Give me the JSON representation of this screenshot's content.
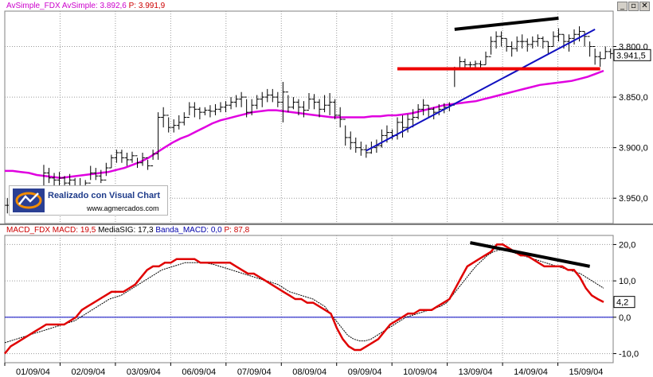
{
  "window_controls": {
    "minimize": "_",
    "restore": "▫",
    "close": "✕"
  },
  "price_panel": {
    "header": {
      "name": "AvSimple_FDX",
      "label": "AvSimple:",
      "value": "3.892,6",
      "p_label": "P:",
      "p_value": "3.991,9"
    },
    "y_ticks": [
      "3.950,0",
      "3.900,0",
      "3.850,0",
      "3.800,0"
    ],
    "last_price": "3.941,5"
  },
  "macd_panel": {
    "header": {
      "name": "MACD_FDX",
      "macd_label": "MACD:",
      "macd_value": "19,5",
      "sig_label": "MediaSIG:",
      "sig_value": "17,3",
      "banda_label": "Banda_MACD:",
      "banda_value": "0,0",
      "p_label": "P:",
      "p_value": "87,8"
    },
    "y_ticks": [
      "20,0",
      "10,0",
      "0,0",
      "-10,0"
    ],
    "last_value": "4,2"
  },
  "x_labels": [
    "01/09/04",
    "02/09/04",
    "03/09/04",
    "06/09/04",
    "07/09/04",
    "08/09/04",
    "09/09/04",
    "10/09/04",
    "13/09/04",
    "14/09/04",
    "15/09/04"
  ],
  "logo": {
    "text": "Realizado con Visual Chart",
    "url": "www.agmercados.com"
  },
  "colors": {
    "sma": "#e000e0",
    "macd": "#e00000",
    "signal": "#000000",
    "zero_band": "#0000c0",
    "trend_blue": "#1010c0",
    "support_red": "#ee0000",
    "trend_black": "#000000",
    "header_magenta": "#cc00cc",
    "header_red": "#cc0000",
    "header_blue": "#0000aa"
  },
  "chart_data": [
    {
      "type": "line",
      "title": "AvSimple_FDX",
      "ylim": [
        3775,
        3985
      ],
      "y_ticks": [
        3800,
        3850,
        3900,
        3950
      ],
      "x_labels": [
        "01/09/04",
        "02/09/04",
        "03/09/04",
        "06/09/04",
        "07/09/04",
        "08/09/04",
        "09/09/04",
        "10/09/04",
        "13/09/04",
        "14/09/04",
        "15/09/04"
      ],
      "last_price": 3941.5,
      "series": [
        {
          "name": "FDX",
          "style": "ohlc",
          "values_hlc": [
            [
              3800,
              3785,
              3793
            ],
            [
              3808,
              3795,
              3805
            ],
            [
              3810,
              3798,
              3802
            ],
            [
              3812,
              3800,
              3808
            ],
            [
              3808,
              3795,
              3800
            ],
            [
              3812,
              3800,
              3806
            ],
            [
              3810,
              3798,
              3803
            ],
            [
              3833,
              3805,
              3825
            ],
            [
              3830,
              3815,
              3820
            ],
            [
              3825,
              3812,
              3818
            ],
            [
              3826,
              3812,
              3820
            ],
            [
              3822,
              3810,
              3815
            ],
            [
              3824,
              3812,
              3818
            ],
            [
              3820,
              3808,
              3812
            ],
            [
              3820,
              3805,
              3808
            ],
            [
              3818,
              3810,
              3815
            ],
            [
              3832,
              3818,
              3825
            ],
            [
              3830,
              3818,
              3822
            ],
            [
              3828,
              3815,
              3818
            ],
            [
              3835,
              3822,
              3830
            ],
            [
              3843,
              3830,
              3840
            ],
            [
              3848,
              3835,
              3845
            ],
            [
              3848,
              3835,
              3840
            ],
            [
              3845,
              3832,
              3838
            ],
            [
              3846,
              3835,
              3842
            ],
            [
              3840,
              3830,
              3835
            ],
            [
              3845,
              3832,
              3840
            ],
            [
              3838,
              3828,
              3832
            ],
            [
              3848,
              3838,
              3844
            ],
            [
              3885,
              3838,
              3880
            ],
            [
              3890,
              3870,
              3882
            ],
            [
              3880,
              3865,
              3870
            ],
            [
              3878,
              3865,
              3872
            ],
            [
              3882,
              3868,
              3875
            ],
            [
              3885,
              3872,
              3880
            ],
            [
              3895,
              3882,
              3890
            ],
            [
              3895,
              3880,
              3888
            ],
            [
              3890,
              3878,
              3885
            ],
            [
              3890,
              3882,
              3887
            ],
            [
              3892,
              3880,
              3886
            ],
            [
              3893,
              3882,
              3888
            ],
            [
              3895,
              3885,
              3890
            ],
            [
              3896,
              3885,
              3892
            ],
            [
              3900,
              3888,
              3895
            ],
            [
              3902,
              3890,
              3898
            ],
            [
              3905,
              3890,
              3900
            ],
            [
              3898,
              3880,
              3885
            ],
            [
              3898,
              3882,
              3892
            ],
            [
              3902,
              3888,
              3898
            ],
            [
              3905,
              3890,
              3900
            ],
            [
              3908,
              3895,
              3902
            ],
            [
              3908,
              3895,
              3900
            ],
            [
              3905,
              3890,
              3895
            ],
            [
              3915,
              3875,
              3905
            ],
            [
              3902,
              3885,
              3890
            ],
            [
              3900,
              3888,
              3895
            ],
            [
              3898,
              3882,
              3890
            ],
            [
              3896,
              3880,
              3887
            ],
            [
              3904,
              3888,
              3898
            ],
            [
              3903,
              3888,
              3895
            ],
            [
              3898,
              3880,
              3888
            ],
            [
              3902,
              3885,
              3892
            ],
            [
              3904,
              3882,
              3895
            ],
            [
              3898,
              3878,
              3882
            ],
            [
              3890,
              3870,
              3878
            ],
            [
              3872,
              3852,
              3860
            ],
            [
              3866,
              3848,
              3855
            ],
            [
              3860,
              3845,
              3850
            ],
            [
              3856,
              3842,
              3848
            ],
            [
              3853,
              3840,
              3845
            ],
            [
              3856,
              3844,
              3850
            ],
            [
              3858,
              3845,
              3852
            ],
            [
              3868,
              3850,
              3862
            ],
            [
              3872,
              3855,
              3865
            ],
            [
              3868,
              3858,
              3862
            ],
            [
              3880,
              3858,
              3875
            ],
            [
              3882,
              3860,
              3870
            ],
            [
              3883,
              3865,
              3878
            ],
            [
              3888,
              3870,
              3880
            ],
            [
              3893,
              3878,
              3888
            ],
            [
              3898,
              3882,
              3892
            ],
            [
              3892,
              3880,
              3888
            ],
            [
              3890,
              3878,
              3885
            ],
            [
              3893,
              3882,
              3888
            ],
            [
              3894,
              3884,
              3890
            ],
            [
              3895,
              3886,
              3892
            ],
            [
              3930,
              3910,
              3928
            ],
            [
              3940,
              3928,
              3935
            ],
            [
              3938,
              3928,
              3932
            ],
            [
              3935,
              3928,
              3932
            ],
            [
              3936,
              3928,
              3933
            ],
            [
              3936,
              3928,
              3932
            ],
            [
              3945,
              3932,
              3940
            ],
            [
              3960,
              3942,
              3955
            ],
            [
              3965,
              3948,
              3960
            ],
            [
              3965,
              3950,
              3958
            ],
            [
              3958,
              3945,
              3950
            ],
            [
              3955,
              3940,
              3948
            ],
            [
              3960,
              3945,
              3955
            ],
            [
              3962,
              3948,
              3955
            ],
            [
              3958,
              3945,
              3952
            ],
            [
              3960,
              3948,
              3955
            ],
            [
              3962,
              3950,
              3958
            ],
            [
              3960,
              3948,
              3955
            ],
            [
              3955,
              3942,
              3950
            ],
            [
              3965,
              3950,
              3960
            ],
            [
              3968,
              3955,
              3962
            ],
            [
              3962,
              3948,
              3955
            ],
            [
              3962,
              3945,
              3958
            ],
            [
              3967,
              3952,
              3962
            ],
            [
              3970,
              3955,
              3965
            ],
            [
              3965,
              3950,
              3960
            ],
            [
              3955,
              3940,
              3950
            ],
            [
              3948,
              3932,
              3940
            ],
            [
              3945,
              3930,
              3938
            ],
            [
              3950,
              3938,
              3945
            ],
            [
              3948,
              3938,
              3943
            ]
          ]
        },
        {
          "name": "AvSimple",
          "values": [
            3827,
            3827,
            3826,
            3825,
            3823,
            3822,
            3821,
            3820,
            3821,
            3822,
            3823,
            3824,
            3825,
            3826,
            3828,
            3830,
            3833,
            3836,
            3840,
            3845,
            3850,
            3855,
            3859,
            3862,
            3866,
            3870,
            3874,
            3877,
            3879,
            3881,
            3883,
            3885,
            3886,
            3887,
            3887,
            3886,
            3885,
            3884,
            3883,
            3882,
            3881,
            3880,
            3880,
            3880,
            3880,
            3880,
            3881,
            3881,
            3882,
            3882,
            3883,
            3884,
            3886,
            3888,
            3890,
            3892,
            3893,
            3894,
            3895,
            3896,
            3898,
            3900,
            3902,
            3904,
            3906,
            3908,
            3910,
            3912,
            3913,
            3914,
            3915,
            3916,
            3918,
            3920,
            3923,
            3926
          ]
        }
      ],
      "annotations": [
        {
          "type": "trendline",
          "color": "blue",
          "points": [
            [
              3847
            ],
            [
              3967
            ]
          ]
        },
        {
          "type": "horizontal_line",
          "color": "red",
          "y": 3928
        },
        {
          "type": "trendline",
          "color": "black",
          "points": [
            [
              3967
            ],
            [
              3978
            ]
          ]
        }
      ]
    },
    {
      "type": "line",
      "title": "MACD_FDX",
      "ylim": [
        -12.5,
        22.5
      ],
      "y_ticks": [
        20,
        10,
        0,
        -10
      ],
      "x_labels": [
        "01/09/04",
        "02/09/04",
        "03/09/04",
        "06/09/04",
        "07/09/04",
        "08/09/04",
        "09/09/04",
        "10/09/04",
        "13/09/04",
        "14/09/04",
        "15/09/04"
      ],
      "last_value": 4.2,
      "series": [
        {
          "name": "MACD",
          "values": [
            -10,
            -8,
            -7,
            -6,
            -5,
            -4,
            -3,
            -2,
            -2,
            -2,
            -2,
            -1,
            0,
            2,
            3,
            4,
            5,
            6,
            7,
            7,
            7,
            8,
            9,
            11,
            13,
            14,
            14,
            15,
            15,
            16,
            16,
            16,
            16,
            15,
            15,
            15,
            15,
            15,
            15,
            14,
            13,
            12,
            12,
            11,
            10,
            9,
            8,
            7,
            6,
            5,
            5,
            4,
            4,
            3,
            2,
            1,
            -3,
            -6,
            -8,
            -9,
            -9,
            -8,
            -7,
            -6,
            -4,
            -2,
            -1,
            0,
            1,
            1,
            2,
            2,
            2,
            3,
            4,
            5,
            8,
            11,
            14,
            15,
            16,
            17,
            18,
            20,
            20,
            19,
            18,
            17,
            17,
            16,
            15,
            14,
            14,
            14,
            14,
            13,
            13,
            11,
            8,
            6,
            5,
            4.2
          ]
        },
        {
          "name": "MediaSIG",
          "values": [
            -7,
            -6.5,
            -6,
            -5.5,
            -5,
            -4.5,
            -4,
            -3.5,
            -3,
            -2.5,
            -2,
            -1.5,
            -1,
            0,
            1,
            2,
            3,
            4,
            5,
            5.5,
            6,
            7,
            8,
            9,
            10,
            11,
            12,
            13,
            13.5,
            14,
            14.5,
            15,
            15,
            15,
            15,
            14.8,
            14.5,
            14,
            13.5,
            13,
            12.5,
            12,
            11.5,
            11,
            10.5,
            10,
            9.5,
            9,
            8,
            7,
            6.5,
            6,
            5.5,
            5,
            4,
            3,
            1,
            -1,
            -3,
            -5,
            -6,
            -6.5,
            -6.5,
            -6,
            -5,
            -4,
            -3,
            -2,
            -1,
            0,
            0.5,
            1,
            1.5,
            2,
            2.5,
            3,
            4,
            6,
            8,
            10,
            12,
            14,
            15.5,
            17,
            18,
            18.5,
            18.5,
            18,
            17.5,
            17,
            16.5,
            16,
            15.5,
            15,
            14.5,
            14,
            13.5,
            13,
            12.5,
            12,
            11,
            10,
            9,
            8
          ]
        }
      ],
      "annotations": [
        {
          "type": "horizontal_line",
          "color": "blue",
          "y": 0
        },
        {
          "type": "trendline",
          "color": "black",
          "points": [
            [
              20.5
            ],
            [
              14
            ]
          ]
        }
      ]
    }
  ]
}
